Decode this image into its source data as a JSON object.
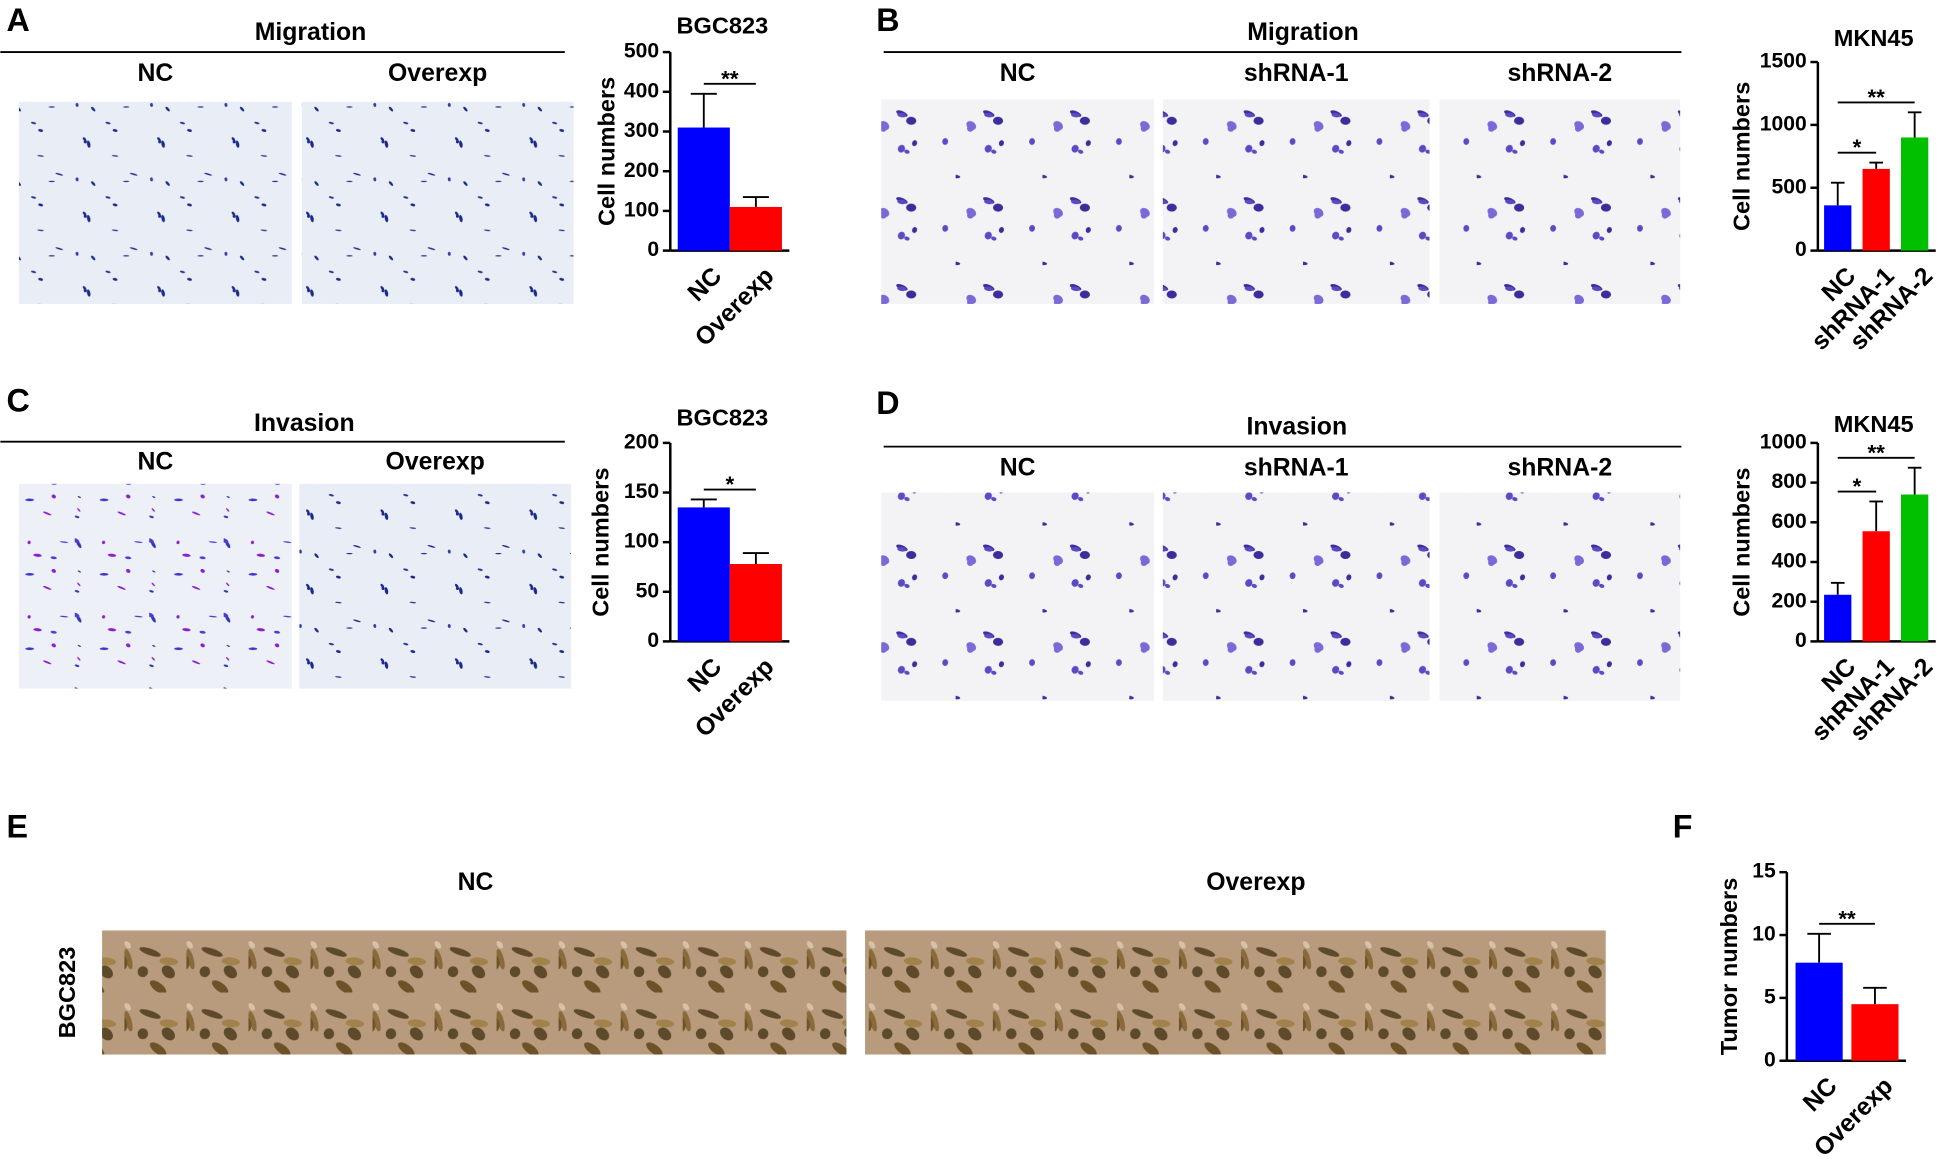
{
  "figure": {
    "panels": [
      {
        "letter": "A",
        "header": "Migration",
        "images": [
          "NC",
          "Overexp"
        ]
      },
      {
        "letter": "B",
        "header": "Migration",
        "images": [
          "NC",
          "shRNA-1",
          "shRNA-2"
        ]
      },
      {
        "letter": "C",
        "header": "Invasion",
        "images": [
          "NC",
          "Overexp"
        ]
      },
      {
        "letter": "D",
        "header": "Invasion",
        "images": [
          "NC",
          "shRNA-1",
          "shRNA-2"
        ]
      },
      {
        "letter": "E",
        "side_label": "BGC823",
        "images": [
          "NC",
          "Overexp"
        ]
      },
      {
        "letter": "F"
      }
    ]
  },
  "chart_data": [
    {
      "type": "bar",
      "title": "BGC823",
      "y_label": "Cell numbers",
      "categories": [
        "NC",
        "Overexp"
      ],
      "values": [
        310,
        110
      ],
      "errors": [
        85,
        25
      ],
      "colors": [
        "#0000ff",
        "#ff0000"
      ],
      "ylim": [
        0,
        500
      ],
      "yticks": [
        0,
        100,
        200,
        300,
        400,
        500
      ],
      "significance": [
        {
          "label": "**",
          "pair": [
            "NC",
            "Overexp"
          ]
        }
      ]
    },
    {
      "type": "bar",
      "title": "MKN45",
      "y_label": "Cell numbers",
      "categories": [
        "NC",
        "shRNA-1",
        "shRNA-2"
      ],
      "values": [
        360,
        650,
        900
      ],
      "errors": [
        180,
        50,
        200
      ],
      "colors": [
        "#0000ff",
        "#ff0000",
        "#00c000"
      ],
      "ylim": [
        0,
        1500
      ],
      "yticks": [
        0,
        500,
        1000,
        1500
      ],
      "significance": [
        {
          "label": "*",
          "pair": [
            "NC",
            "shRNA-1"
          ]
        },
        {
          "label": "**",
          "pair": [
            "NC",
            "shRNA-2"
          ]
        }
      ]
    },
    {
      "type": "bar",
      "title": "BGC823",
      "y_label": "Cell numbers",
      "categories": [
        "NC",
        "Overexp"
      ],
      "values": [
        135,
        78
      ],
      "errors": [
        8,
        11
      ],
      "colors": [
        "#0000ff",
        "#ff0000"
      ],
      "ylim": [
        0,
        200
      ],
      "yticks": [
        0,
        50,
        100,
        150,
        200
      ],
      "significance": [
        {
          "label": "*",
          "pair": [
            "NC",
            "Overexp"
          ]
        }
      ]
    },
    {
      "type": "bar",
      "title": "MKN45",
      "y_label": "Cell numbers",
      "categories": [
        "NC",
        "shRNA-1",
        "shRNA-2"
      ],
      "values": [
        235,
        555,
        740
      ],
      "errors": [
        60,
        150,
        135
      ],
      "colors": [
        "#0000ff",
        "#ff0000",
        "#00c000"
      ],
      "ylim": [
        0,
        1000
      ],
      "yticks": [
        0,
        200,
        400,
        600,
        800,
        1000
      ],
      "significance": [
        {
          "label": "*",
          "pair": [
            "NC",
            "shRNA-1"
          ]
        },
        {
          "label": "**",
          "pair": [
            "NC",
            "shRNA-2"
          ]
        }
      ]
    },
    {
      "type": "bar",
      "y_label": "Tumor numbers",
      "categories": [
        "NC",
        "Overexp"
      ],
      "values": [
        7.8,
        4.5
      ],
      "errors": [
        2.3,
        1.3
      ],
      "colors": [
        "#0000ff",
        "#ff0000"
      ],
      "ylim": [
        0,
        15
      ],
      "yticks": [
        0,
        5,
        10,
        15
      ],
      "significance": [
        {
          "label": "**",
          "pair": [
            "NC",
            "Overexp"
          ]
        }
      ]
    }
  ]
}
